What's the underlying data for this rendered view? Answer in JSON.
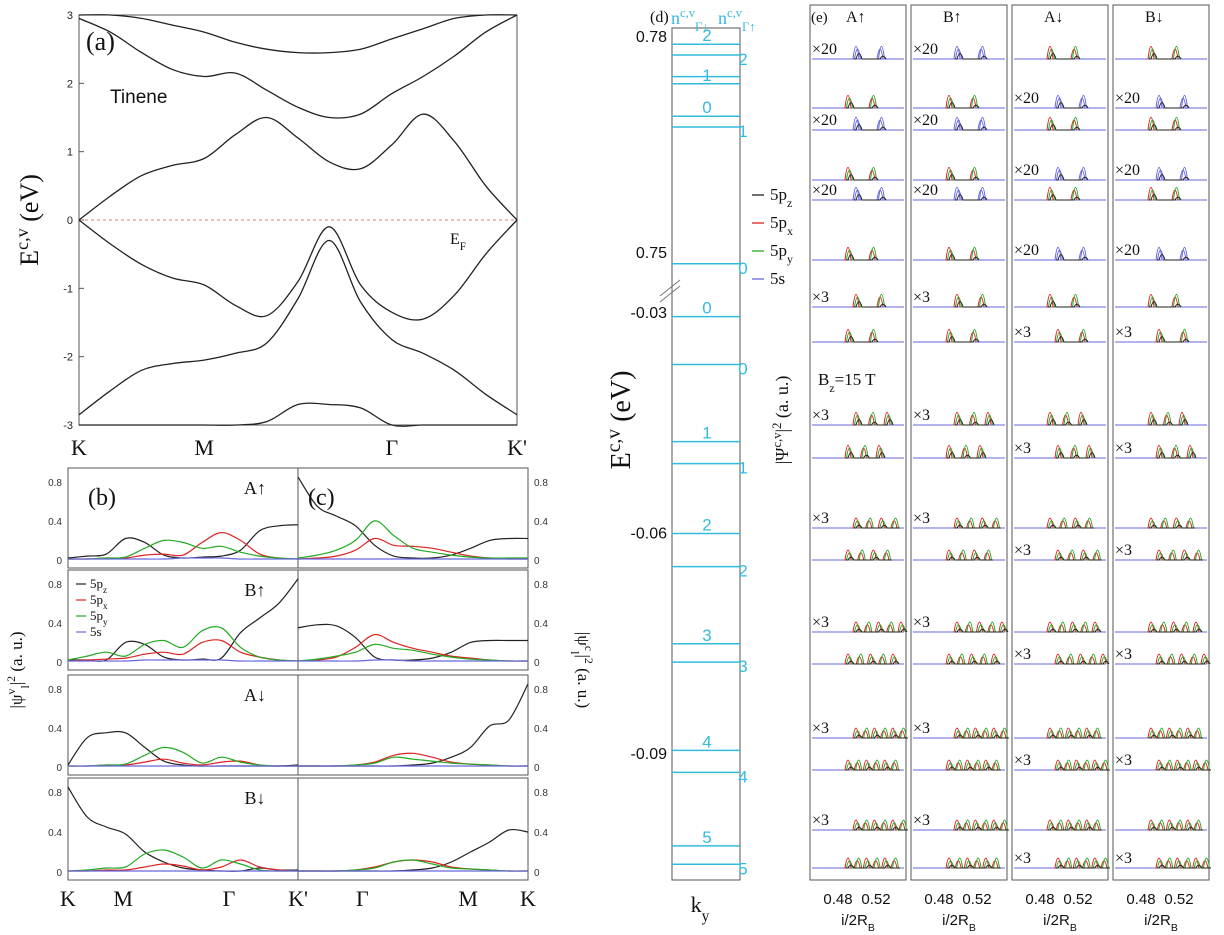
{
  "colors": {
    "axis": "#555555",
    "band": "#222222",
    "fermi": "#d08080",
    "cyan": "#33bbdd",
    "pz": "#222222",
    "px": "#dd2222",
    "py": "#22aa22",
    "s": "#6666dd"
  },
  "chart_data": [
    {
      "panel": "a",
      "type": "line",
      "label": "(a)",
      "annotation": "Tinene",
      "ylabel": "E^{c,v} (eV)",
      "ylim": [
        -3,
        3
      ],
      "yticks": [
        "3",
        "2",
        "1",
        "0",
        "-1",
        "-2",
        "-3"
      ],
      "xticks": [
        "K",
        "M",
        "Γ",
        "K'"
      ],
      "fermi_label": "E_F",
      "fermi_level": 0,
      "x": [
        0,
        0.5,
        1,
        1.5,
        2,
        2.5,
        3,
        3.5,
        4,
        4.5,
        5,
        5.5,
        6,
        6.5,
        7
      ],
      "series": [
        {
          "values": [
            0,
            0.35,
            0.65,
            0.8,
            0.9,
            1.25,
            1.5,
            1.2,
            0.85,
            0.75,
            1.1,
            1.55,
            1.15,
            0.5,
            0
          ]
        },
        {
          "values": [
            2.95,
            2.75,
            2.45,
            2.2,
            2.1,
            2.15,
            1.9,
            1.65,
            1.5,
            1.55,
            1.85,
            2.1,
            2.4,
            2.75,
            3.0
          ]
        },
        {
          "values": [
            3.0,
            3.0,
            2.95,
            2.85,
            2.75,
            2.6,
            2.5,
            2.45,
            2.45,
            2.5,
            2.65,
            2.8,
            2.95,
            3.0,
            3.0
          ]
        },
        {
          "values": [
            0,
            -0.35,
            -0.65,
            -0.85,
            -0.95,
            -1.25,
            -1.4,
            -0.9,
            -0.1,
            -0.95,
            -1.35,
            -1.45,
            -1.1,
            -0.5,
            0
          ]
        },
        {
          "values": [
            -2.85,
            -2.5,
            -2.2,
            -2.1,
            -2.05,
            -1.95,
            -1.8,
            -1.15,
            -0.3,
            -1.2,
            -1.75,
            -1.95,
            -2.2,
            -2.55,
            -2.85
          ]
        },
        {
          "values": [
            -3.0,
            -3.0,
            -3.0,
            -3.0,
            -3.0,
            -3.0,
            -2.95,
            -2.7,
            -2.7,
            -2.75,
            -3.0,
            -3.0,
            -3.0,
            -3.0,
            -3.0
          ]
        }
      ]
    },
    {
      "panel": "b",
      "type": "line",
      "label": "(b)",
      "ylabel": "|ψ^v_l|^2 (a. u.)",
      "xticks": [
        "K",
        "M",
        "Γ",
        "K'"
      ],
      "yticks": [
        "0.8",
        "0.4",
        "0"
      ],
      "legend": [
        "5p_z",
        "5p_x",
        "5p_y",
        "5s"
      ],
      "subpanels": [
        {
          "title": "A↑",
          "x": [
            0,
            1,
            2,
            3,
            4,
            5,
            6,
            7,
            8,
            9,
            10,
            11,
            12
          ],
          "pz": [
            0.02,
            0.04,
            0.06,
            0.22,
            0.18,
            0.05,
            0.02,
            0.03,
            0.04,
            0.1,
            0.3,
            0.35,
            0.36
          ],
          "px": [
            0.01,
            0.01,
            0.02,
            0.02,
            0.05,
            0.06,
            0.05,
            0.18,
            0.28,
            0.2,
            0.06,
            0.02,
            0.01
          ],
          "py": [
            0.01,
            0.01,
            0.02,
            0.03,
            0.12,
            0.2,
            0.18,
            0.12,
            0.14,
            0.08,
            0.04,
            0.02,
            0.01
          ],
          "s": [
            0.01,
            0.01,
            0.01,
            0.01,
            0.01,
            0.01,
            0.02,
            0.02,
            0.02,
            0.01,
            0.01,
            0.01,
            0.01
          ]
        },
        {
          "title": "B↑",
          "x": [
            0,
            1,
            2,
            3,
            4,
            5,
            6,
            7,
            8,
            9,
            10,
            11,
            12
          ],
          "pz": [
            0.02,
            0.02,
            0.02,
            0.2,
            0.18,
            0.05,
            0.02,
            0.03,
            0.04,
            0.3,
            0.45,
            0.6,
            0.85
          ],
          "px": [
            0.01,
            0.02,
            0.03,
            0.04,
            0.08,
            0.1,
            0.08,
            0.2,
            0.22,
            0.1,
            0.05,
            0.02,
            0.01
          ],
          "py": [
            0.02,
            0.06,
            0.1,
            0.06,
            0.18,
            0.22,
            0.15,
            0.32,
            0.35,
            0.15,
            0.05,
            0.02,
            0.01
          ],
          "s": [
            0.01,
            0.01,
            0.01,
            0.01,
            0.02,
            0.02,
            0.02,
            0.02,
            0.02,
            0.01,
            0.01,
            0.01,
            0.01
          ]
        },
        {
          "title": "A↓",
          "x": [
            0,
            1,
            2,
            3,
            4,
            5,
            6,
            7,
            8,
            9,
            10,
            11,
            12
          ],
          "pz": [
            0.02,
            0.3,
            0.35,
            0.35,
            0.2,
            0.06,
            0.02,
            0.01,
            0.01,
            0.01,
            0.01,
            0.01,
            0.02
          ],
          "px": [
            0.01,
            0.01,
            0.02,
            0.02,
            0.05,
            0.08,
            0.04,
            0.02,
            0.05,
            0.06,
            0.02,
            0.01,
            0.01
          ],
          "py": [
            0.01,
            0.01,
            0.02,
            0.03,
            0.12,
            0.2,
            0.15,
            0.04,
            0.1,
            0.05,
            0.02,
            0.01,
            0.01
          ],
          "s": [
            0.01,
            0.01,
            0.01,
            0.01,
            0.01,
            0.01,
            0.01,
            0.01,
            0.01,
            0.01,
            0.01,
            0.01,
            0.01
          ]
        },
        {
          "title": "B↓",
          "x": [
            0,
            1,
            2,
            3,
            4,
            5,
            6,
            7,
            8,
            9,
            10,
            11,
            12
          ],
          "pz": [
            0.85,
            0.55,
            0.45,
            0.38,
            0.2,
            0.1,
            0.04,
            0.02,
            0.01,
            0.01,
            0.04,
            0.02,
            0.02
          ],
          "px": [
            0.01,
            0.01,
            0.02,
            0.02,
            0.05,
            0.08,
            0.06,
            0.02,
            0.05,
            0.12,
            0.05,
            0.02,
            0.01
          ],
          "py": [
            0.01,
            0.02,
            0.04,
            0.05,
            0.18,
            0.22,
            0.15,
            0.04,
            0.12,
            0.08,
            0.02,
            0.01,
            0.01
          ],
          "s": [
            0.01,
            0.01,
            0.01,
            0.01,
            0.01,
            0.01,
            0.01,
            0.01,
            0.01,
            0.01,
            0.01,
            0.01,
            0.01
          ]
        }
      ]
    },
    {
      "panel": "c",
      "type": "line",
      "label": "(c)",
      "ylabel": "|ψ^c_l|^2 (a. u.)",
      "xticks": [
        "K'",
        "Γ",
        "M",
        "K"
      ],
      "yticks": [
        "0.8",
        "0.4",
        "0"
      ],
      "subpanels": [
        {
          "title": "",
          "x": [
            0,
            1,
            2,
            3,
            4,
            5,
            6,
            7,
            8,
            9,
            10,
            11,
            12
          ],
          "pz": [
            0.85,
            0.55,
            0.45,
            0.35,
            0.15,
            0.04,
            0.02,
            0.02,
            0.05,
            0.12,
            0.2,
            0.22,
            0.22
          ],
          "px": [
            0.01,
            0.02,
            0.04,
            0.1,
            0.22,
            0.15,
            0.14,
            0.12,
            0.08,
            0.04,
            0.02,
            0.01,
            0.01
          ],
          "py": [
            0.02,
            0.05,
            0.1,
            0.2,
            0.4,
            0.25,
            0.12,
            0.08,
            0.05,
            0.03,
            0.02,
            0.02,
            0.02
          ],
          "s": [
            0.01,
            0.01,
            0.01,
            0.01,
            0.01,
            0.01,
            0.01,
            0.01,
            0.01,
            0.01,
            0.01,
            0.01,
            0.01
          ]
        },
        {
          "title": "",
          "x": [
            0,
            1,
            2,
            3,
            4,
            5,
            6,
            7,
            8,
            9,
            10,
            11,
            12
          ],
          "pz": [
            0.35,
            0.38,
            0.37,
            0.25,
            0.05,
            0.02,
            0.02,
            0.04,
            0.1,
            0.2,
            0.22,
            0.22,
            0.22
          ],
          "px": [
            0.01,
            0.02,
            0.05,
            0.15,
            0.28,
            0.2,
            0.14,
            0.1,
            0.06,
            0.04,
            0.02,
            0.01,
            0.01
          ],
          "py": [
            0.01,
            0.03,
            0.06,
            0.1,
            0.18,
            0.14,
            0.12,
            0.08,
            0.05,
            0.03,
            0.02,
            0.01,
            0.01
          ],
          "s": [
            0.01,
            0.01,
            0.01,
            0.01,
            0.02,
            0.02,
            0.01,
            0.01,
            0.01,
            0.01,
            0.01,
            0.01,
            0.01
          ]
        },
        {
          "title": "",
          "x": [
            0,
            1,
            2,
            3,
            4,
            5,
            6,
            7,
            8,
            9,
            10,
            11,
            12
          ],
          "pz": [
            0.01,
            0.01,
            0.01,
            0.01,
            0.01,
            0.01,
            0.02,
            0.04,
            0.1,
            0.2,
            0.42,
            0.48,
            0.85
          ],
          "px": [
            0.01,
            0.01,
            0.01,
            0.02,
            0.05,
            0.12,
            0.14,
            0.1,
            0.05,
            0.03,
            0.02,
            0.01,
            0.01
          ],
          "py": [
            0.01,
            0.01,
            0.01,
            0.02,
            0.04,
            0.1,
            0.08,
            0.06,
            0.04,
            0.03,
            0.02,
            0.01,
            0.01
          ],
          "s": [
            0.01,
            0.01,
            0.01,
            0.01,
            0.01,
            0.01,
            0.01,
            0.01,
            0.01,
            0.01,
            0.01,
            0.01,
            0.01
          ]
        },
        {
          "title": "",
          "x": [
            0,
            1,
            2,
            3,
            4,
            5,
            6,
            7,
            8,
            9,
            10,
            11,
            12
          ],
          "pz": [
            0.01,
            0.01,
            0.01,
            0.01,
            0.01,
            0.01,
            0.02,
            0.04,
            0.1,
            0.2,
            0.3,
            0.42,
            0.4
          ],
          "px": [
            0.01,
            0.01,
            0.01,
            0.02,
            0.05,
            0.1,
            0.12,
            0.1,
            0.05,
            0.03,
            0.02,
            0.01,
            0.01
          ],
          "py": [
            0.01,
            0.01,
            0.01,
            0.02,
            0.04,
            0.1,
            0.12,
            0.08,
            0.04,
            0.03,
            0.02,
            0.01,
            0.01
          ],
          "s": [
            0.01,
            0.01,
            0.01,
            0.01,
            0.01,
            0.01,
            0.01,
            0.01,
            0.01,
            0.01,
            0.01,
            0.01,
            0.01
          ]
        }
      ]
    },
    {
      "panel": "d",
      "type": "line",
      "label": "(d)",
      "ylabel": "E^{c,v} (eV)",
      "xlabel": "k_y",
      "header_left": "n^{c,v}_{Γ↓}",
      "header_right": "n^{c,v}_{Γ↑}",
      "yticks": [
        "0.78",
        "0.75",
        "-0.03",
        "-0.06",
        "-0.09"
      ],
      "levels_upper": [
        {
          "E": 0.779,
          "n_left": "2",
          "n_right": ""
        },
        {
          "E": 0.7775,
          "n_left": "",
          "n_right": "2"
        },
        {
          "E": 0.7745,
          "n_left": "",
          "n_right": ""
        },
        {
          "E": 0.7735,
          "n_left": "1",
          "n_right": ""
        },
        {
          "E": 0.769,
          "n_left": "0",
          "n_right": ""
        },
        {
          "E": 0.7675,
          "n_left": "",
          "n_right": "1"
        },
        {
          "E": 0.7485,
          "n_left": "",
          "n_right": "0"
        }
      ],
      "levels_lower": [
        {
          "E": -0.0305,
          "n_left": "0",
          "n_right": ""
        },
        {
          "E": -0.037,
          "n_left": "",
          "n_right": "0"
        },
        {
          "E": -0.0475,
          "n_left": "1",
          "n_right": ""
        },
        {
          "E": -0.0505,
          "n_left": "",
          "n_right": "1"
        },
        {
          "E": -0.06,
          "n_left": "2",
          "n_right": ""
        },
        {
          "E": -0.0645,
          "n_left": "",
          "n_right": "2"
        },
        {
          "E": -0.075,
          "n_left": "3",
          "n_right": ""
        },
        {
          "E": -0.0775,
          "n_left": "",
          "n_right": "3"
        },
        {
          "E": -0.0895,
          "n_left": "4",
          "n_right": ""
        },
        {
          "E": -0.0925,
          "n_left": "",
          "n_right": "4"
        },
        {
          "E": -0.1025,
          "n_left": "5",
          "n_right": ""
        },
        {
          "E": -0.105,
          "n_left": "",
          "n_right": "5"
        }
      ],
      "legend": [
        "5p_z",
        "5p_x",
        "5p_y",
        "5s"
      ]
    },
    {
      "panel": "e",
      "type": "line",
      "label": "(e)",
      "ylabel": "|Ψ^{c,v}|^2 (a. u.)",
      "field_label": "B_z=15 T",
      "xlabel": "i/2R_B",
      "xticks": [
        "0.48",
        "0.52"
      ],
      "columns": [
        "A↑",
        "B↑",
        "A↓",
        "B↓"
      ],
      "row_scales": [
        [
          "×20",
          "×20",
          "",
          ""
        ],
        [
          "",
          "",
          "×20",
          "×20"
        ],
        [
          "×20",
          "×20",
          "",
          ""
        ],
        [
          "",
          "",
          "×20",
          "×20"
        ],
        [
          "×20",
          "×20",
          "",
          ""
        ],
        [
          "",
          "",
          "×20",
          "×20"
        ],
        [
          "×3",
          "×3",
          "",
          ""
        ],
        [
          "",
          "",
          "×3",
          "×3"
        ],
        [
          "×3",
          "×3",
          "",
          ""
        ],
        [
          "",
          "",
          "×3",
          "×3"
        ],
        [
          "×3",
          "×3",
          "",
          ""
        ],
        [
          "",
          "",
          "×3",
          "×3"
        ],
        [
          "×3",
          "×3",
          "",
          ""
        ],
        [
          "",
          "",
          "×3",
          "×3"
        ],
        [
          "×3",
          "×3",
          "",
          ""
        ],
        [
          "",
          "",
          "×3",
          "×3"
        ],
        [
          "×3",
          "×3",
          "",
          ""
        ],
        [
          "",
          "",
          "×3",
          "×3"
        ]
      ]
    }
  ]
}
